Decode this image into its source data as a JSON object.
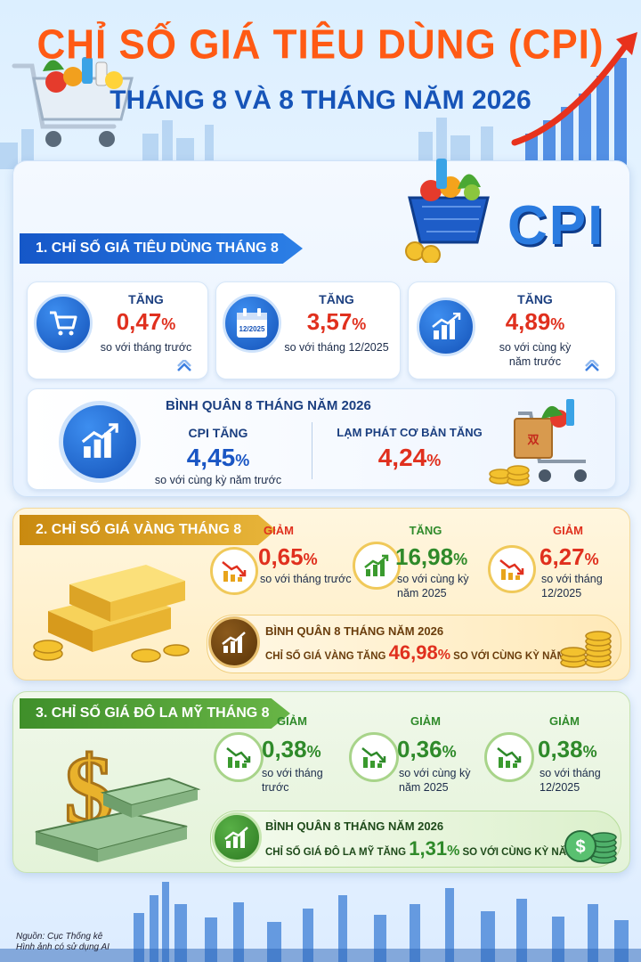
{
  "header": {
    "title": "CHỈ SỐ GIÁ TIÊU DÙNG (CPI)",
    "subtitle": "THÁNG 8 VÀ 8 THÁNG NĂM 2026",
    "cpi_logo": "CPI"
  },
  "section1": {
    "banner": "1. CHỈ SỐ GIÁ TIÊU DÙNG THÁNG 8",
    "cards": [
      {
        "label": "TĂNG",
        "value": "0,47",
        "unit": "%",
        "desc": "so với tháng trước",
        "icon": "cart-icon"
      },
      {
        "label": "TĂNG",
        "value": "3,57",
        "unit": "%",
        "desc": "so với tháng 12/2025",
        "icon": "calendar-icon",
        "icon_text": "12/2025"
      },
      {
        "label": "TĂNG",
        "value": "4,89",
        "unit": "%",
        "desc_1": "so với cùng kỳ",
        "desc_2": "năm trước",
        "icon": "chart-up-icon"
      }
    ],
    "average": {
      "title": "BÌNH QUÂN 8 THÁNG NĂM 2026",
      "cpi_label": "CPI TĂNG",
      "cpi_value": "4,45",
      "cpi_unit": "%",
      "cpi_desc": "so với cùng kỳ năm trước",
      "core_label": "LẠM PHÁT CƠ BẢN TĂNG",
      "core_value": "4,24",
      "core_unit": "%"
    }
  },
  "section2": {
    "banner": "2. CHỈ SỐ GIÁ VÀNG THÁNG 8",
    "items": [
      {
        "label": "GIẢM",
        "value": "0,65",
        "unit": "%",
        "desc_1": "so với tháng trước",
        "desc_2": "",
        "trend": "down"
      },
      {
        "label": "TĂNG",
        "value": "16,98",
        "unit": "%",
        "desc_1": "so với cùng kỳ",
        "desc_2": "năm 2025",
        "trend": "up"
      },
      {
        "label": "GIẢM",
        "value": "6,27",
        "unit": "%",
        "desc_1": "so với tháng",
        "desc_2": "12/2025",
        "trend": "down"
      }
    ],
    "average": {
      "title": "BÌNH QUÂN 8 THÁNG NĂM 2026",
      "prefix": "CHỈ SỐ GIÁ VÀNG TĂNG",
      "value": "46,98",
      "unit": "%",
      "suffix": "SO VỚI CÙNG KỲ NĂM TRƯỚC"
    }
  },
  "section3": {
    "banner": "3. CHỈ SỐ GIÁ ĐÔ LA MỸ THÁNG 8",
    "items": [
      {
        "label": "GIẢM",
        "value": "0,38",
        "unit": "%",
        "desc_1": "so với tháng trước",
        "desc_2": ""
      },
      {
        "label": "GIẢM",
        "value": "0,36",
        "unit": "%",
        "desc_1": "so với cùng kỳ",
        "desc_2": "năm 2025"
      },
      {
        "label": "GIẢM",
        "value": "0,38",
        "unit": "%",
        "desc_1": "so với tháng",
        "desc_2": "12/2025"
      }
    ],
    "average": {
      "title": "BÌNH QUÂN 8 THÁNG NĂM 2026",
      "prefix": "CHỈ SỐ GIÁ ĐÔ LA MỸ TĂNG",
      "value": "1,31",
      "unit": "%",
      "suffix": "SO VỚI CÙNG KỲ NĂM TRƯỚC"
    }
  },
  "footer": {
    "source": "Nguồn: Cục Thống kê",
    "note": "Hình ảnh có sử dụng AI"
  },
  "colors": {
    "title_orange": "#ff5a14",
    "subtitle_blue": "#1654b8",
    "increase_red": "#e0301e",
    "decrease_green": "#2f8a2a",
    "value_blue": "#1a56c4"
  }
}
